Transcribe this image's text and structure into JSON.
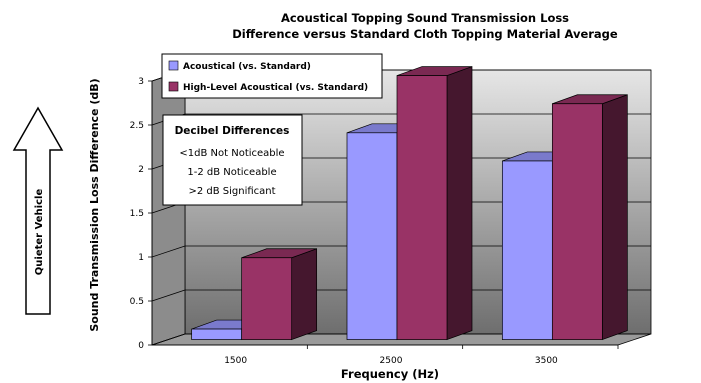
{
  "chart_data": {
    "type": "bar",
    "title": "Acoustical Topping Sound Transmission Loss",
    "subtitle": "Difference versus Standard Cloth Topping Material Average",
    "xlabel": "Frequency (Hz)",
    "ylabel": "Sound Transmission Loss Difference (dB)",
    "categories": [
      "1500",
      "2500",
      "3500"
    ],
    "ylim": [
      0,
      3
    ],
    "yticks": [
      "0",
      "0.5",
      "1",
      "1.5",
      "2",
      "2.5",
      "3"
    ],
    "grid": true,
    "legend_placement": "top-left",
    "series": [
      {
        "name": "Acoustical (vs. Standard)",
        "values": [
          0.12,
          2.35,
          2.03
        ],
        "color": "#9999ff"
      },
      {
        "name": "High-Level Acoustical (vs. Standard)",
        "values": [
          0.93,
          3.0,
          2.68
        ],
        "color": "#993366"
      }
    ],
    "annotations": {
      "box_title": "Decibel Differences",
      "box_lines": [
        "<1dB Not Noticeable",
        "1-2 dB Noticeable",
        ">2 dB Significant"
      ],
      "arrow_label": "Quieter Vehicle"
    }
  }
}
